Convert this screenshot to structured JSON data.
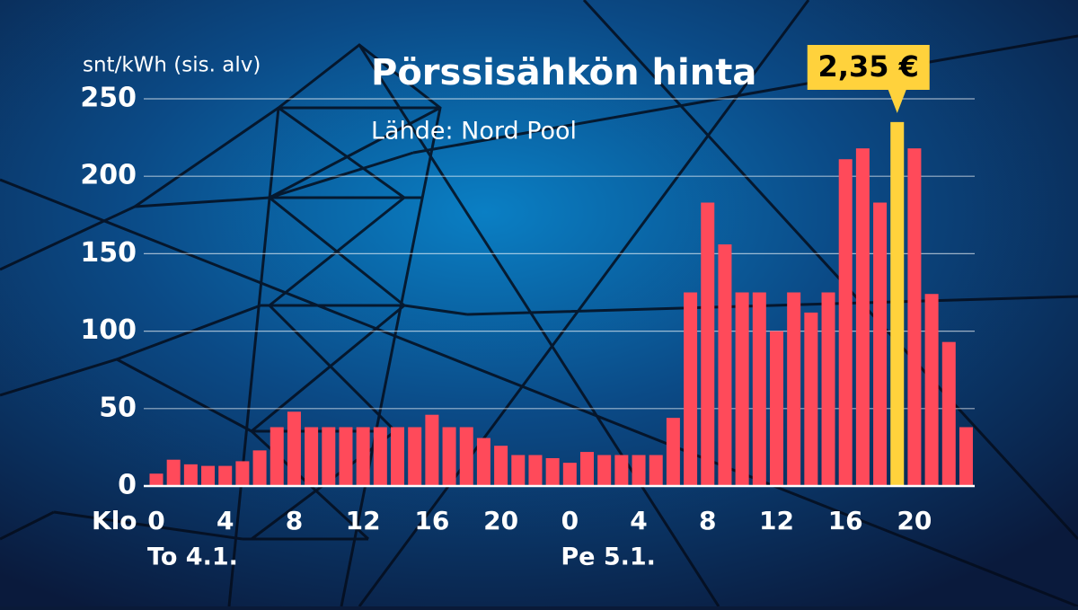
{
  "chart_data": {
    "type": "bar",
    "title": "Pörssisähkön hinta",
    "subtitle": "Lähde: Nord Pool",
    "y_label": "snt/kWh (sis. alv)",
    "x_prefix": "Klo",
    "day_labels": [
      "To 4.1.",
      "Pe 5.1."
    ],
    "categories": [
      "0",
      null,
      null,
      null,
      "4",
      null,
      null,
      null,
      "8",
      null,
      null,
      null,
      "12",
      null,
      null,
      null,
      "16",
      null,
      null,
      null,
      "20",
      null,
      null,
      null,
      "0",
      null,
      null,
      null,
      "4",
      null,
      null,
      null,
      "8",
      null,
      null,
      null,
      "12",
      null,
      null,
      null,
      "16",
      null,
      null,
      null,
      "20",
      null,
      null,
      null
    ],
    "values": [
      8,
      17,
      14,
      13,
      13,
      16,
      23,
      38,
      48,
      38,
      38,
      38,
      38,
      38,
      38,
      38,
      46,
      38,
      38,
      31,
      26,
      20,
      20,
      18,
      15,
      22,
      20,
      20,
      20,
      20,
      44,
      125,
      183,
      156,
      125,
      125,
      100,
      125,
      112,
      125,
      211,
      218,
      183,
      235,
      218,
      124,
      93,
      38
    ],
    "value_labels": [
      null,
      null,
      null,
      null,
      null,
      null,
      null,
      null,
      null,
      null,
      null,
      null,
      null,
      null,
      null,
      null,
      null,
      null,
      null,
      null,
      null,
      null,
      null,
      null,
      null,
      null,
      null,
      null,
      null,
      null,
      null,
      null,
      null,
      null,
      null,
      null,
      null,
      null,
      null,
      null,
      null,
      null,
      null,
      "2,35 €",
      null,
      null,
      null,
      null
    ],
    "color": "#ff4a5a",
    "highlight_color": "#ffd23c",
    "ylim": [
      0,
      250
    ],
    "yticks": [
      0,
      50,
      100,
      150,
      200,
      250
    ],
    "grid": true
  }
}
